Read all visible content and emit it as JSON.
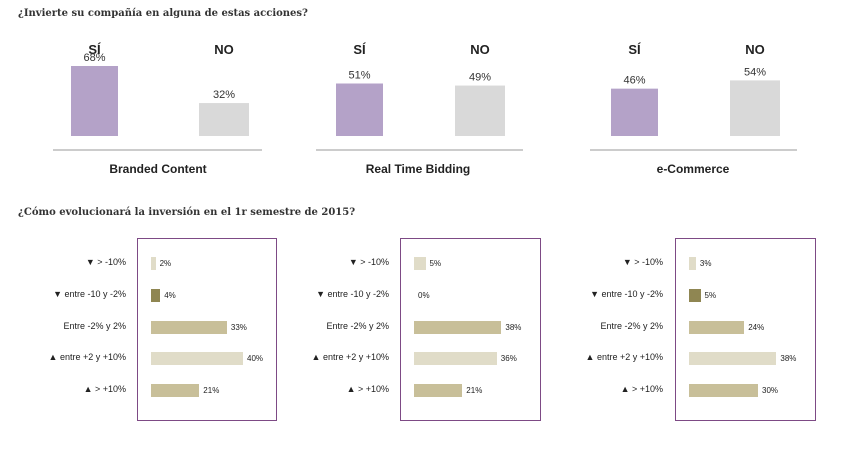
{
  "questions": {
    "q1": "¿Invierte su compañía en alguna de estas acciones?",
    "q2": "¿Cómo evolucionará la inversión en el 1r semestre de 2015?"
  },
  "colors": {
    "si": "#b4a2c8",
    "no": "#d9d9d9",
    "frame": "#7d4a85",
    "light": "#e0dcc8",
    "olive": "#8f8652",
    "tan": "#c8bf99"
  },
  "chart_data": [
    {
      "type": "bar",
      "title": "Branded Content",
      "categories": [
        "SÍ",
        "NO"
      ],
      "values": [
        68,
        32
      ],
      "value_labels": [
        "68%",
        "32%"
      ],
      "ylim": [
        0,
        100
      ]
    },
    {
      "type": "bar",
      "title": "Real Time Bidding",
      "categories": [
        "SÍ",
        "NO"
      ],
      "values": [
        51,
        49
      ],
      "value_labels": [
        "51%",
        "49%"
      ],
      "ylim": [
        0,
        100
      ]
    },
    {
      "type": "bar",
      "title": "e-Commerce",
      "categories": [
        "SÍ",
        "NO"
      ],
      "values": [
        46,
        54
      ],
      "value_labels": [
        "46%",
        "54%"
      ],
      "ylim": [
        0,
        100
      ]
    },
    {
      "type": "bar",
      "orientation": "horizontal",
      "title": "",
      "categories": [
        "▼ > -10%",
        "▼ entre -10 y -2%",
        "Entre -2% y 2%",
        "▲ entre +2 y +10%",
        "▲ > +10%"
      ],
      "values": [
        2,
        4,
        33,
        40,
        21
      ],
      "value_labels": [
        "2%",
        "4%",
        "33%",
        "40%",
        "21%"
      ],
      "bar_colors": [
        "light",
        "olive",
        "tan",
        "light",
        "tan"
      ]
    },
    {
      "type": "bar",
      "orientation": "horizontal",
      "title": "",
      "categories": [
        "▼ > -10%",
        "▼ entre -10 y -2%",
        "Entre -2% y 2%",
        "▲ entre +2 y +10%",
        "▲ > +10%"
      ],
      "values": [
        5,
        0,
        38,
        36,
        21
      ],
      "value_labels": [
        "5%",
        "0%",
        "38%",
        "36%",
        "21%"
      ],
      "bar_colors": [
        "light",
        "olive",
        "tan",
        "light",
        "tan"
      ]
    },
    {
      "type": "bar",
      "orientation": "horizontal",
      "title": "",
      "categories": [
        "▼ > -10%",
        "▼ entre -10 y -2%",
        "Entre -2% y 2%",
        "▲ entre +2 y +10%",
        "▲ > +10%"
      ],
      "values": [
        3,
        5,
        24,
        38,
        30
      ],
      "value_labels": [
        "3%",
        "5%",
        "24%",
        "38%",
        "30%"
      ],
      "bar_colors": [
        "light",
        "olive",
        "tan",
        "light",
        "tan"
      ]
    }
  ]
}
